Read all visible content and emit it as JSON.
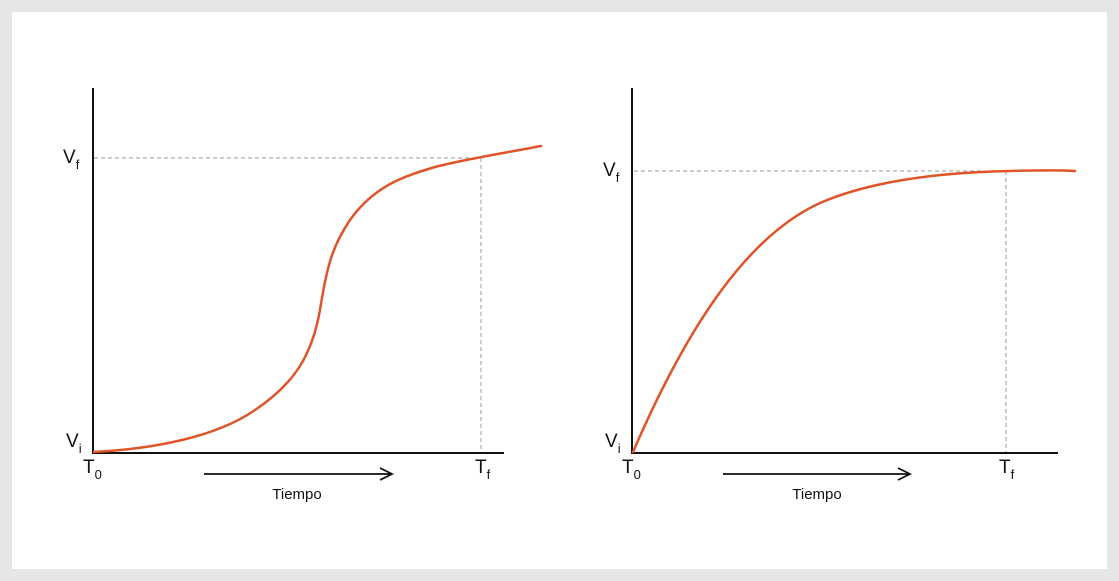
{
  "colors": {
    "curve": "#e0542a",
    "axis": "#111111",
    "guide": "#999999",
    "panel": "#ffffff",
    "background": "#e6e6e6"
  },
  "graphs": [
    {
      "shape": "sigmoid",
      "labels": {
        "v_main": "V",
        "v_final_sub": "f",
        "v_initial_sub": "i",
        "t_main": "T",
        "t_start_sub": "0",
        "t_final_sub": "f",
        "time_label": "Tiempo"
      }
    },
    {
      "shape": "saturation",
      "labels": {
        "v_main": "V",
        "v_final_sub": "f",
        "v_initial_sub": "i",
        "t_main": "T",
        "t_start_sub": "0",
        "t_final_sub": "f",
        "time_label": "Tiempo"
      }
    }
  ]
}
